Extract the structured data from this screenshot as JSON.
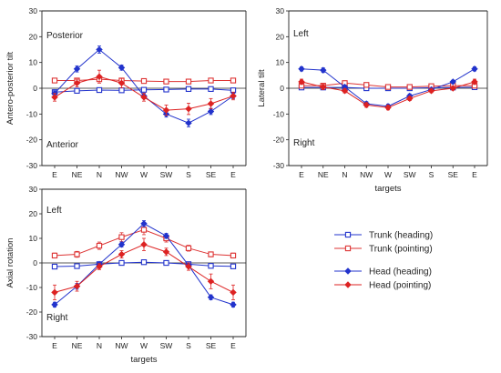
{
  "colors": {
    "trunk": "#e07070",
    "head": "#2233cc",
    "trunk_pointing": "#cc3333",
    "head_pointing": "#dd2222"
  },
  "chart_data": [
    {
      "id": "antero",
      "type": "line",
      "categories": [
        "E",
        "NE",
        "N",
        "NW",
        "W",
        "SW",
        "S",
        "SE",
        "E"
      ],
      "ylabel": "Antero-posterior tilt",
      "xlabel": "",
      "ylim": [
        -30,
        30
      ],
      "yticks": [
        -30,
        -20,
        -10,
        0,
        10,
        20,
        30
      ],
      "annotations": {
        "top": "Posterior",
        "bottom": "Anterior"
      },
      "series": [
        {
          "key": "trunk_heading",
          "values": [
            -1.5,
            -1,
            -0.7,
            -0.8,
            -0.6,
            -0.5,
            -0.3,
            -0.3,
            -0.8
          ],
          "errors": [
            0.4,
            0.4,
            0.3,
            0.3,
            0.3,
            0.3,
            0.3,
            0.3,
            0.4
          ]
        },
        {
          "key": "trunk_pointing",
          "values": [
            3,
            3,
            3.5,
            3,
            2.8,
            2.6,
            2.6,
            3,
            3
          ],
          "errors": [
            0.6,
            0.6,
            0.6,
            0.6,
            0.6,
            0.6,
            0.6,
            0.6,
            0.6
          ]
        },
        {
          "key": "head_heading",
          "values": [
            -2,
            7.5,
            15,
            8,
            -3,
            -10,
            -13.5,
            -9,
            -3
          ],
          "errors": [
            1,
            1.2,
            1.4,
            1,
            1,
            1.2,
            1.5,
            1.2,
            1
          ]
        },
        {
          "key": "head_pointing",
          "values": [
            -3.5,
            2,
            4.5,
            2,
            -3.5,
            -8.5,
            -8,
            -6,
            -3
          ],
          "errors": [
            1.5,
            1.5,
            2.5,
            1.8,
            1.5,
            2,
            2.2,
            2,
            1.5
          ]
        }
      ]
    },
    {
      "id": "lateral",
      "type": "line",
      "categories": [
        "E",
        "NE",
        "N",
        "NW",
        "W",
        "SW",
        "S",
        "SE",
        "E"
      ],
      "ylabel": "Lateral tilt",
      "xlabel": "targets",
      "ylim": [
        -30,
        30
      ],
      "yticks": [
        -30,
        -20,
        -10,
        0,
        10,
        20,
        30
      ],
      "annotations": {
        "top": "Left",
        "bottom": "Right"
      },
      "series": [
        {
          "key": "trunk_heading",
          "values": [
            0.3,
            0.3,
            0.3,
            0,
            0,
            0,
            0.2,
            0.3,
            0.4
          ],
          "errors": [
            0.3,
            0.3,
            0.3,
            0.3,
            0.3,
            0.3,
            0.3,
            0.3,
            0.3
          ]
        },
        {
          "key": "trunk_pointing",
          "values": [
            1,
            1,
            2,
            1.3,
            0.5,
            0.5,
            0.8,
            1,
            1
          ],
          "errors": [
            0.4,
            0.4,
            0.4,
            0.4,
            0.4,
            0.4,
            0.4,
            0.4,
            0.4
          ]
        },
        {
          "key": "head_heading",
          "values": [
            7.5,
            7,
            0.5,
            -6,
            -7,
            -3,
            -0.5,
            2.5,
            7.5
          ],
          "errors": [
            0.8,
            0.9,
            0.7,
            0.8,
            0.8,
            0.8,
            0.6,
            0.6,
            0.8
          ]
        },
        {
          "key": "head_pointing",
          "values": [
            2.5,
            0.5,
            -1,
            -6.5,
            -7.5,
            -4,
            -1,
            0,
            2.5
          ],
          "errors": [
            1,
            1,
            0.8,
            0.9,
            0.9,
            0.8,
            0.7,
            0.7,
            1
          ]
        }
      ]
    },
    {
      "id": "axial",
      "type": "line",
      "categories": [
        "E",
        "NE",
        "N",
        "NW",
        "W",
        "SW",
        "S",
        "SE",
        "E"
      ],
      "ylabel": "Axial rotation",
      "xlabel": "targets",
      "ylim": [
        -30,
        30
      ],
      "yticks": [
        -30,
        -20,
        -10,
        0,
        10,
        20,
        30
      ],
      "annotations": {
        "top": "Left",
        "bottom": "Right"
      },
      "series": [
        {
          "key": "trunk_heading",
          "values": [
            -1.5,
            -1.3,
            -0.5,
            0,
            0.3,
            0,
            -0.5,
            -1.2,
            -1.4
          ],
          "errors": [
            0.4,
            0.4,
            0.3,
            0.3,
            0.3,
            0.3,
            0.3,
            0.4,
            0.4
          ]
        },
        {
          "key": "trunk_pointing",
          "values": [
            3,
            3.5,
            7,
            10.5,
            13.5,
            10,
            6,
            3.5,
            3
          ],
          "errors": [
            1,
            1.2,
            1.5,
            1.8,
            2,
            1.5,
            1.2,
            1,
            1
          ]
        },
        {
          "key": "head_heading",
          "values": [
            -17,
            -9.5,
            -0.5,
            7.5,
            16,
            11,
            -1,
            -14,
            -17
          ],
          "errors": [
            1,
            1.2,
            0.8,
            1,
            1.2,
            1,
            1,
            1,
            1
          ]
        },
        {
          "key": "head_pointing",
          "values": [
            -12,
            -9.5,
            -1.5,
            3.5,
            7.5,
            4.5,
            -1.5,
            -7.5,
            -12
          ],
          "errors": [
            3,
            2,
            1.2,
            1.5,
            2.5,
            1.5,
            1.5,
            3,
            3
          ]
        }
      ]
    }
  ],
  "legend": [
    {
      "key": "trunk_heading",
      "label": "Trunk (heading)",
      "marker": "square-open",
      "color": "#2233cc"
    },
    {
      "key": "trunk_pointing",
      "label": "Trunk (pointing)",
      "marker": "square-open",
      "color": "#dd3333"
    },
    {
      "key": "head_heading",
      "label": "Head (heading)",
      "marker": "diamond-filled",
      "color": "#2233cc"
    },
    {
      "key": "head_pointing",
      "label": "Head (pointing)",
      "marker": "diamond-filled",
      "color": "#dd2222"
    }
  ],
  "series_style": {
    "trunk_heading": {
      "color": "#2233cc",
      "marker": "square-open"
    },
    "trunk_pointing": {
      "color": "#dd3333",
      "marker": "square-open"
    },
    "head_heading": {
      "color": "#2233cc",
      "marker": "diamond-filled"
    },
    "head_pointing": {
      "color": "#dd2222",
      "marker": "diamond-filled"
    }
  }
}
